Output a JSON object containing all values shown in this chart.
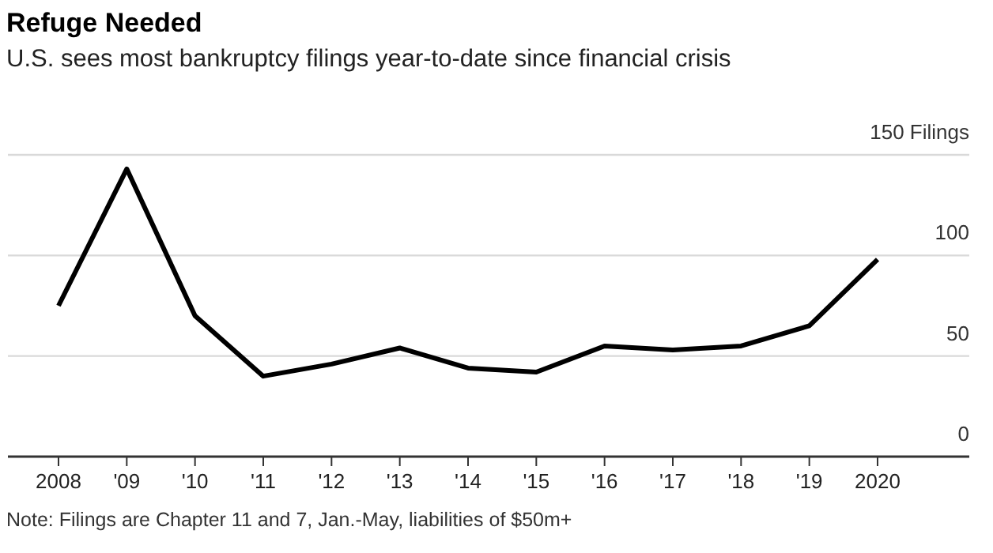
{
  "chart_data": {
    "type": "line",
    "title": "Refuge Needed",
    "subtitle": "U.S. sees most bankruptcy filings year-to-date since financial crisis",
    "categories": [
      "2008",
      "'09",
      "'10",
      "'11",
      "'12",
      "'13",
      "'14",
      "'15",
      "'16",
      "'17",
      "'18",
      "'19",
      "2020"
    ],
    "series": [
      {
        "color": "#000000",
        "values": [
          75,
          143,
          70,
          40,
          46,
          54,
          44,
          42,
          55,
          53,
          55,
          65,
          98
        ]
      }
    ],
    "ylim": [
      0,
      150
    ],
    "yticks": [
      0,
      50,
      100,
      {
        "value": 150,
        "label": "150 Filings"
      }
    ],
    "grid": "y",
    "marker": "none",
    "line_style": "solid",
    "annotations": [
      "Note: Filings are Chapter 11 and 7, Jan.-May, liabilities of $50m+"
    ]
  }
}
